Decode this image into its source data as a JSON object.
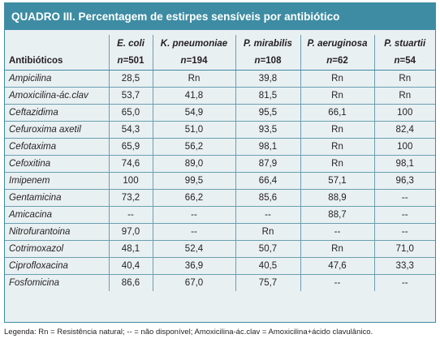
{
  "title": "QUADRO III. Percentagem de estirpes sensíveis por antibiótico",
  "table": {
    "species": [
      "E. coli",
      "K. pneumoniae",
      "P. mirabilis",
      "P. aeruginosa",
      "P. stuartii"
    ],
    "row_header_label": "Antibióticos",
    "n_values": [
      "501",
      "194",
      "108",
      "62",
      "54"
    ],
    "n_prefix": "n",
    "rows": [
      {
        "drug": "Ampicilina",
        "values": [
          "28,5",
          "Rn",
          "39,8",
          "Rn",
          "Rn"
        ]
      },
      {
        "drug": "Amoxicilina-ác.clav",
        "values": [
          "53,7",
          "41,8",
          "81,5",
          "Rn",
          "Rn"
        ]
      },
      {
        "drug": "Ceftazidima",
        "values": [
          "65,0",
          "54,9",
          "95,5",
          "66,1",
          "100"
        ]
      },
      {
        "drug": "Cefuroxima axetil",
        "values": [
          "54,3",
          "51,0",
          "93,5",
          "Rn",
          "82,4"
        ]
      },
      {
        "drug": "Cefotaxima",
        "values": [
          "65,9",
          "56,2",
          "98,1",
          "Rn",
          "100"
        ]
      },
      {
        "drug": "Cefoxitina",
        "values": [
          "74,6",
          "89,0",
          "87,9",
          "Rn",
          "98,1"
        ]
      },
      {
        "drug": "Imipenem",
        "values": [
          "100",
          "99,5",
          "66,4",
          "57,1",
          "96,3"
        ]
      },
      {
        "drug": "Gentamicina",
        "values": [
          "73,2",
          "66,2",
          "85,6",
          "88,9",
          "--"
        ]
      },
      {
        "drug": "Amicacina",
        "values": [
          "--",
          "--",
          "--",
          "88,7",
          "--"
        ]
      },
      {
        "drug": "Nitrofurantoina",
        "values": [
          "97,0",
          "--",
          "Rn",
          "--",
          "--"
        ]
      },
      {
        "drug": "Cotrimoxazol",
        "values": [
          "48,1",
          "52,4",
          "50,7",
          "Rn",
          "71,0"
        ]
      },
      {
        "drug": "Ciprofloxacina",
        "values": [
          "40,4",
          "36,9",
          "40,5",
          "47,6",
          "33,3"
        ]
      },
      {
        "drug": "Fosfomicina",
        "values": [
          "86,6",
          "67,0",
          "75,7",
          "--",
          "--"
        ]
      }
    ]
  },
  "legend": "Legenda: Rn = Resistência natural; -- = não disponível; Amoxicilina-ác.clav = Amoxicilina+ácido clavulânico.",
  "colors": {
    "accent": "#3d8ca3",
    "table_background": "#e9f0f2",
    "title_text": "#ffffff"
  }
}
